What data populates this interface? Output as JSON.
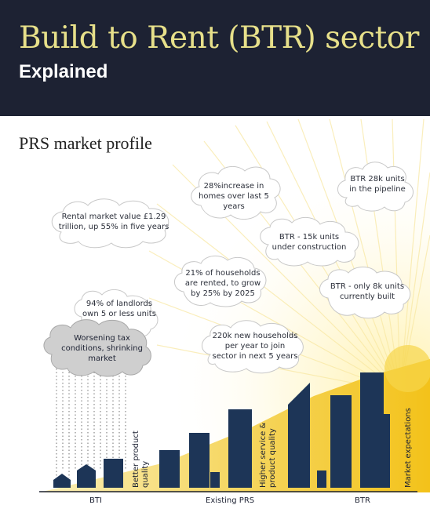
{
  "header": {
    "title": "Build to Rent (BTR) sector",
    "subtitle": "Explained"
  },
  "section": {
    "title": "PRS market profile"
  },
  "clouds": {
    "rental_market": "Rental market value £1.29 trillion, up 55% in five years",
    "increase_homes": "28%increase in homes over last 5 years",
    "btr_pipeline": "BTR 28k units in the pipeline",
    "btr_construction": "BTR - 15k units under construction",
    "households_rented": "21% of households are rented, to grow by 25% by 2025",
    "btr_built": "BTR - only 8k units currently built",
    "landlords": "94% of landlords own 5 or less units",
    "worsening": "Worsening tax conditions, shrinking market",
    "new_households": "220k new households per year to join sector in next 5 years"
  },
  "labels": {
    "better_quality": "Better product quality",
    "higher_service": "Higher service & product quality",
    "market_expectations": "Market expectations"
  },
  "axis": {
    "bti": "BTI",
    "existing_prs": "Existing PRS",
    "btr": "BTR"
  },
  "colors": {
    "navy": "#1d3557",
    "header_bg": "#1d2233",
    "title_yellow": "#e7e08a",
    "sun_yellow": "#f3c21a",
    "storm_grey": "#c9c9c9"
  }
}
